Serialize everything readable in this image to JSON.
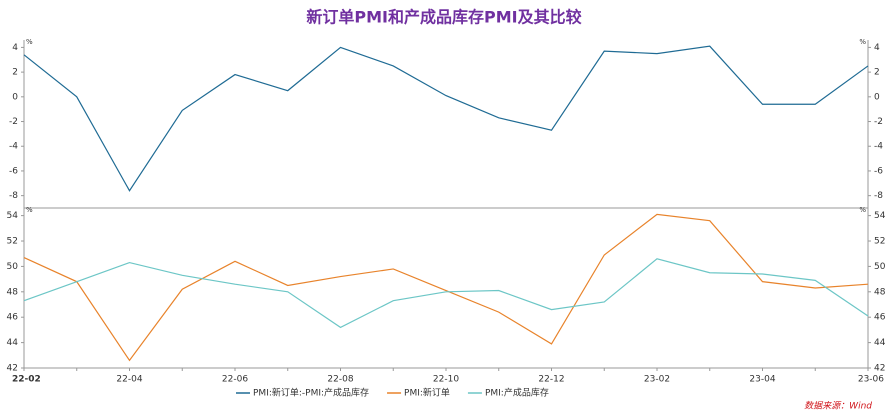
{
  "title": "新订单PMI和产成品库存PMI及其比较",
  "source": "数据来源：Wind",
  "chart_data": [
    {
      "type": "line",
      "y_unit": "%",
      "categories": [
        "22-02",
        null,
        "22-04",
        null,
        "22-06",
        null,
        "22-08",
        null,
        "22-10",
        null,
        "22-12",
        null,
        "23-02",
        null,
        "23-04",
        null,
        "23-06"
      ],
      "series": [
        {
          "name": "PMI:新订单:-PMI:产成品库存",
          "color": "#1f6b94",
          "values": [
            3.4,
            0,
            -7.6,
            -1.1,
            1.8,
            0.5,
            4.0,
            2.5,
            0.1,
            -1.7,
            -2.7,
            3.7,
            3.5,
            4.1,
            -0.6,
            -0.6,
            2.5
          ]
        }
      ],
      "ylim": [
        -9,
        4.6
      ],
      "yticks": [
        -8,
        -6,
        -4,
        -2,
        0,
        2,
        4
      ]
    },
    {
      "type": "line",
      "y_unit": "%",
      "categories": [
        "22-02",
        null,
        "22-04",
        null,
        "22-06",
        null,
        "22-08",
        null,
        "22-10",
        null,
        "22-12",
        null,
        "23-02",
        null,
        "23-04",
        null,
        "23-06"
      ],
      "series": [
        {
          "name": "PMI:新订单",
          "color": "#e8832b",
          "values": [
            50.7,
            48.8,
            42.6,
            48.2,
            50.4,
            48.5,
            49.2,
            49.8,
            48.1,
            46.4,
            43.9,
            50.9,
            54.1,
            53.6,
            48.8,
            48.3,
            48.6
          ]
        },
        {
          "name": "PMI:产成品库存",
          "color": "#6cc6c6",
          "values": [
            47.3,
            48.8,
            50.3,
            49.3,
            48.6,
            48.0,
            45.2,
            47.3,
            48.0,
            48.1,
            46.6,
            47.2,
            50.6,
            49.5,
            49.4,
            48.9,
            46.1
          ]
        }
      ],
      "ylim": [
        42,
        54.6
      ],
      "yticks": [
        42,
        44,
        46,
        48,
        50,
        52,
        54
      ]
    }
  ]
}
